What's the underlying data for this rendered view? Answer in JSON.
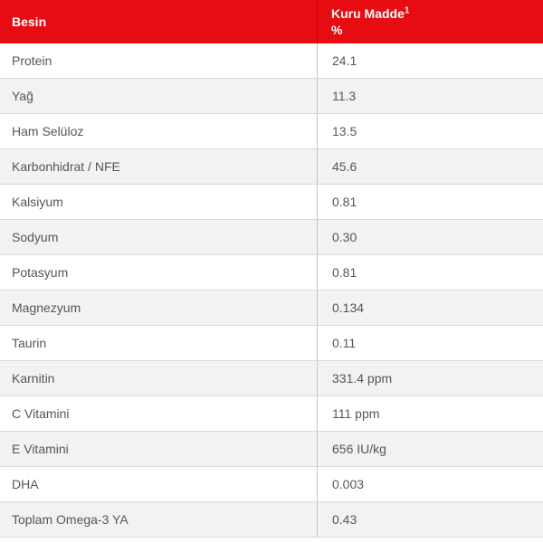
{
  "table": {
    "header": {
      "col1": "Besin",
      "col2": "Kuru Madde",
      "col2_superscript": "1",
      "col2_unit": "%"
    },
    "rows": [
      {
        "label": "Protein",
        "value": "24.1"
      },
      {
        "label": "Yağ",
        "value": "11.3"
      },
      {
        "label": "Ham Selüloz",
        "value": "13.5"
      },
      {
        "label": "Karbonhidrat / NFE",
        "value": "45.6"
      },
      {
        "label": "Kalsiyum",
        "value": "0.81"
      },
      {
        "label": "Sodyum",
        "value": "0.30"
      },
      {
        "label": "Potasyum",
        "value": "0.81"
      },
      {
        "label": "Magnezyum",
        "value": "0.134"
      },
      {
        "label": "Taurin",
        "value": "0.11"
      },
      {
        "label": "Karnitin",
        "value": "331.4 ppm"
      },
      {
        "label": "C Vitamini",
        "value": "111 ppm"
      },
      {
        "label": "E Vitamini",
        "value": "656 IU/kg"
      },
      {
        "label": "DHA",
        "value": "0.003"
      },
      {
        "label": "Toplam Omega-3 YA",
        "value": "0.43"
      }
    ],
    "colors": {
      "header_bg": "#e60c12",
      "header_text": "#ffffff",
      "row_text": "#54565a",
      "zebra_bg": "#f2f2f2",
      "row_border": "#d9d9d9",
      "divider": "#c6c6c6"
    }
  }
}
